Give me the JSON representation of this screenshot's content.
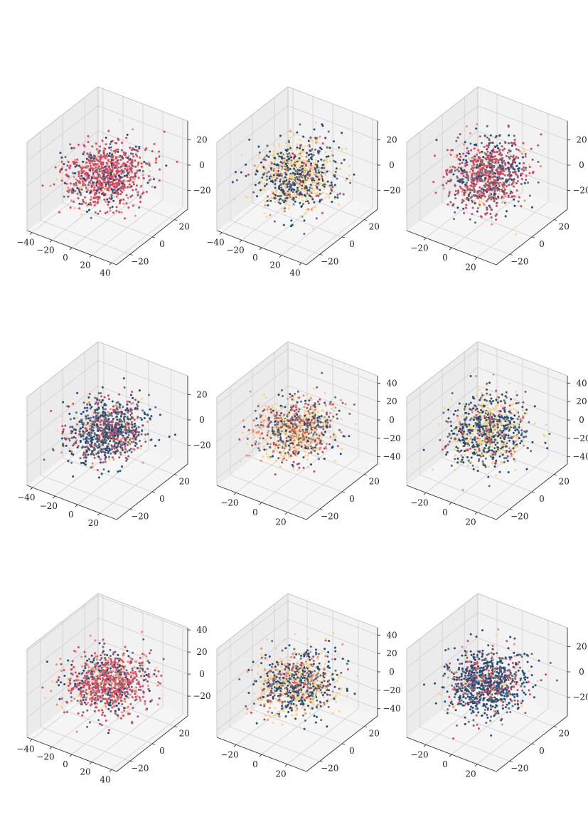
{
  "chart_data": [
    {
      "type": "scatter",
      "projection": "3d",
      "grid": true,
      "xticks": [
        "−40",
        "−20",
        "0",
        "20",
        "40"
      ],
      "yticks": [
        "−20",
        "0",
        "20"
      ],
      "zticks": [
        "−20",
        "0",
        "20"
      ],
      "xlim": [
        -45,
        45
      ],
      "ylim": [
        -32,
        32
      ],
      "zlim": [
        -35,
        35
      ],
      "color_mix": [
        0.15,
        0.15,
        0.55,
        0.12,
        0.03
      ],
      "n_points": 900,
      "spread": [
        0.95,
        0.95,
        0.7
      ]
    },
    {
      "type": "scatter",
      "projection": "3d",
      "grid": true,
      "xticks": [
        "−40",
        "−20",
        "0",
        "20",
        "40"
      ],
      "yticks": [
        "−20",
        "0",
        "20"
      ],
      "zticks": [
        "−20",
        "0",
        "20"
      ],
      "xlim": [
        -45,
        45
      ],
      "ylim": [
        -32,
        32
      ],
      "zlim": [
        -35,
        35
      ],
      "color_mix": [
        0.35,
        0.15,
        0.05,
        0.05,
        0.4
      ],
      "n_points": 900,
      "spread": [
        0.95,
        0.95,
        0.85
      ]
    },
    {
      "type": "scatter",
      "projection": "3d",
      "grid": true,
      "xticks": [
        "−20",
        "0",
        "20"
      ],
      "yticks": [
        "−20",
        "0",
        "20"
      ],
      "zticks": [
        "−20",
        "0",
        "20"
      ],
      "xlim": [
        -35,
        35
      ],
      "ylim": [
        -32,
        32
      ],
      "zlim": [
        -35,
        35
      ],
      "color_mix": [
        0.2,
        0.3,
        0.4,
        0.05,
        0.05
      ],
      "n_points": 900,
      "spread": [
        0.9,
        0.9,
        0.85
      ]
    },
    {
      "type": "scatter",
      "projection": "3d",
      "grid": true,
      "xticks": [
        "−40",
        "−20",
        "0",
        "20"
      ],
      "yticks": [
        "−20",
        "0",
        "20"
      ],
      "zticks": [
        "−20",
        "0",
        "20"
      ],
      "xlim": [
        -45,
        35
      ],
      "ylim": [
        -32,
        32
      ],
      "zlim": [
        -35,
        35
      ],
      "color_mix": [
        0.4,
        0.35,
        0.15,
        0.05,
        0.05
      ],
      "n_points": 900,
      "spread": [
        0.85,
        0.95,
        0.75
      ]
    },
    {
      "type": "scatter",
      "projection": "3d",
      "grid": true,
      "xticks": [
        "−20",
        "0",
        "20"
      ],
      "yticks": [
        "−20",
        "0",
        "20"
      ],
      "zticks": [
        "−40",
        "−20",
        "0",
        "20",
        "40"
      ],
      "xlim": [
        -35,
        35
      ],
      "ylim": [
        -32,
        32
      ],
      "zlim": [
        -48,
        48
      ],
      "color_mix": [
        0.15,
        0.25,
        0.1,
        0.15,
        0.35
      ],
      "n_points": 900,
      "spread": [
        0.9,
        0.9,
        0.7
      ]
    },
    {
      "type": "scatter",
      "projection": "3d",
      "grid": true,
      "xticks": [
        "−20",
        "0",
        "20"
      ],
      "yticks": [
        "−20",
        "0",
        "20"
      ],
      "zticks": [
        "−40",
        "−20",
        "0",
        "20",
        "40"
      ],
      "xlim": [
        -35,
        35
      ],
      "ylim": [
        -32,
        32
      ],
      "zlim": [
        -48,
        48
      ],
      "color_mix": [
        0.4,
        0.25,
        0.05,
        0.05,
        0.25
      ],
      "n_points": 900,
      "spread": [
        0.9,
        0.9,
        0.85
      ]
    },
    {
      "type": "scatter",
      "projection": "3d",
      "grid": true,
      "xticks": [
        "−40",
        "−20",
        "0",
        "20",
        "40"
      ],
      "yticks": [
        "−20",
        "0",
        "20"
      ],
      "zticks": [
        "−20",
        "0",
        "20",
        "40"
      ],
      "xlim": [
        -45,
        45
      ],
      "ylim": [
        -32,
        32
      ],
      "zlim": [
        -38,
        42
      ],
      "color_mix": [
        0.15,
        0.2,
        0.4,
        0.2,
        0.05
      ],
      "n_points": 900,
      "spread": [
        0.95,
        0.95,
        0.6
      ]
    },
    {
      "type": "scatter",
      "projection": "3d",
      "grid": true,
      "xticks": [
        "−20",
        "0",
        "20"
      ],
      "yticks": [
        "−20",
        "0",
        "20"
      ],
      "zticks": [
        "−40",
        "−20",
        "0",
        "20",
        "40"
      ],
      "xlim": [
        -35,
        35
      ],
      "ylim": [
        -32,
        32
      ],
      "zlim": [
        -48,
        48
      ],
      "color_mix": [
        0.3,
        0.2,
        0.05,
        0.1,
        0.35
      ],
      "n_points": 900,
      "spread": [
        0.9,
        0.9,
        0.7
      ]
    },
    {
      "type": "scatter",
      "projection": "3d",
      "grid": true,
      "xticks": [
        "−20",
        "0",
        "20"
      ],
      "yticks": [
        "−20",
        "0",
        "20"
      ],
      "zticks": [
        "−20",
        "0",
        "20"
      ],
      "xlim": [
        -35,
        35
      ],
      "ylim": [
        -32,
        32
      ],
      "zlim": [
        -35,
        35
      ],
      "color_mix": [
        0.5,
        0.25,
        0.15,
        0.05,
        0.05
      ],
      "n_points": 900,
      "spread": [
        0.9,
        0.9,
        0.75
      ]
    }
  ],
  "palette": [
    "#1f4e79",
    "#6b6a7a",
    "#e0445f",
    "#ef8a74",
    "#fdd384"
  ],
  "colors": {
    "pane_side": "#ebebeb",
    "pane_back": "#f2f2f2",
    "pane_floor": "#f5f5f5",
    "grid": "#cfcfcf",
    "axis": "#333333"
  }
}
